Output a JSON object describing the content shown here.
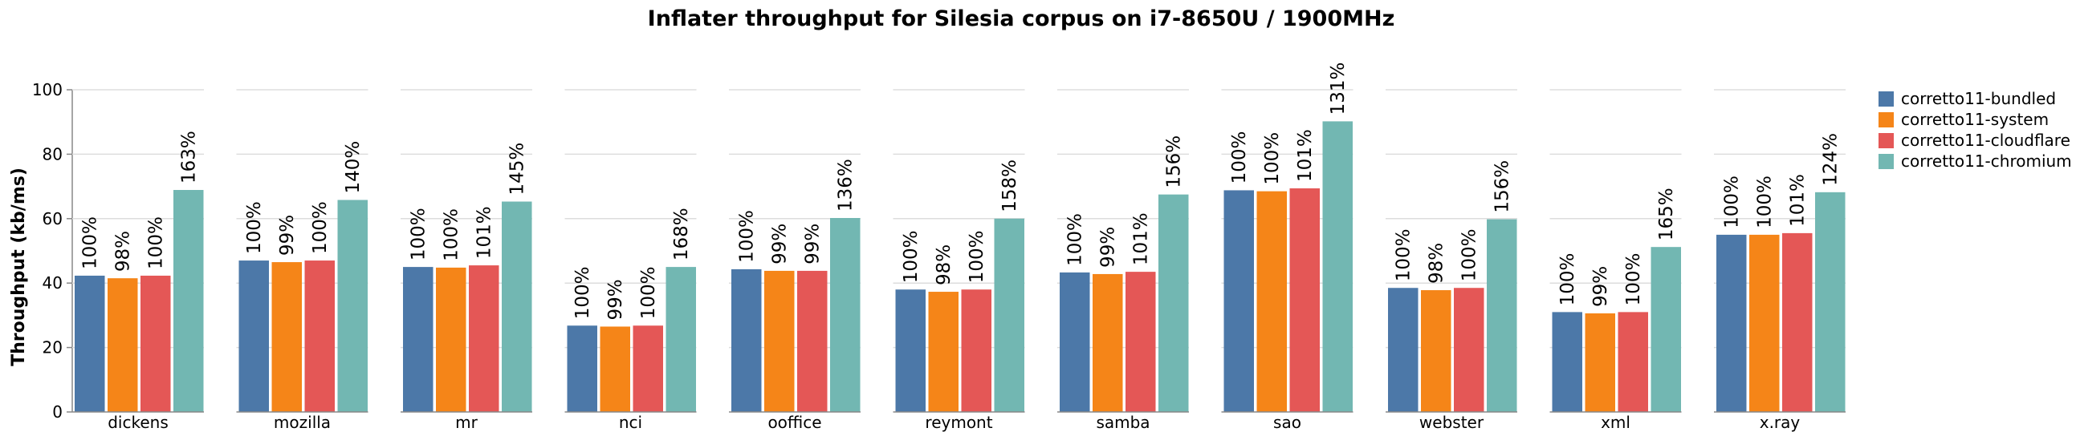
{
  "chart_data": {
    "type": "bar",
    "title": "Inflater throughput for Silesia corpus on i7-8650U / 1900MHz",
    "ylabel": "Throughput (kb/ms)",
    "xlabel": "",
    "ylim": [
      0,
      100
    ],
    "yticks": [
      "0",
      "20",
      "40",
      "60",
      "80",
      "100"
    ],
    "grid": true,
    "legend_position": "right",
    "categories": [
      "dickens",
      "mozilla",
      "mr",
      "nci",
      "ooffice",
      "reymont",
      "samba",
      "sao",
      "webster",
      "xml",
      "x.ray"
    ],
    "series": [
      {
        "name": "corretto11-bundled",
        "color": "#4c78a8",
        "values": [
          42.3,
          47.0,
          45.0,
          26.8,
          44.3,
          38.0,
          43.3,
          68.8,
          38.5,
          31.0,
          55.0
        ],
        "labels": [
          "100%",
          "100%",
          "100%",
          "100%",
          "100%",
          "100%",
          "100%",
          "100%",
          "100%",
          "100%",
          "100%"
        ]
      },
      {
        "name": "corretto11-system",
        "color": "#f58518",
        "values": [
          41.5,
          46.5,
          44.8,
          26.5,
          43.8,
          37.3,
          42.8,
          68.5,
          37.8,
          30.6,
          55.0
        ],
        "labels": [
          "98%",
          "99%",
          "100%",
          "99%",
          "99%",
          "98%",
          "99%",
          "100%",
          "98%",
          "99%",
          "100%"
        ]
      },
      {
        "name": "corretto11-cloudflare",
        "color": "#e45756",
        "values": [
          42.3,
          47.0,
          45.5,
          26.8,
          43.8,
          38.0,
          43.5,
          69.4,
          38.5,
          31.0,
          55.5
        ],
        "labels": [
          "100%",
          "100%",
          "101%",
          "100%",
          "99%",
          "100%",
          "101%",
          "101%",
          "100%",
          "100%",
          "101%"
        ]
      },
      {
        "name": "corretto11-chromium",
        "color": "#72b7b2",
        "values": [
          68.9,
          65.8,
          65.3,
          45.0,
          60.2,
          60.0,
          67.5,
          90.2,
          59.8,
          51.2,
          68.2
        ],
        "labels": [
          "163%",
          "140%",
          "145%",
          "168%",
          "136%",
          "158%",
          "156%",
          "131%",
          "156%",
          "165%",
          "124%"
        ]
      }
    ]
  }
}
